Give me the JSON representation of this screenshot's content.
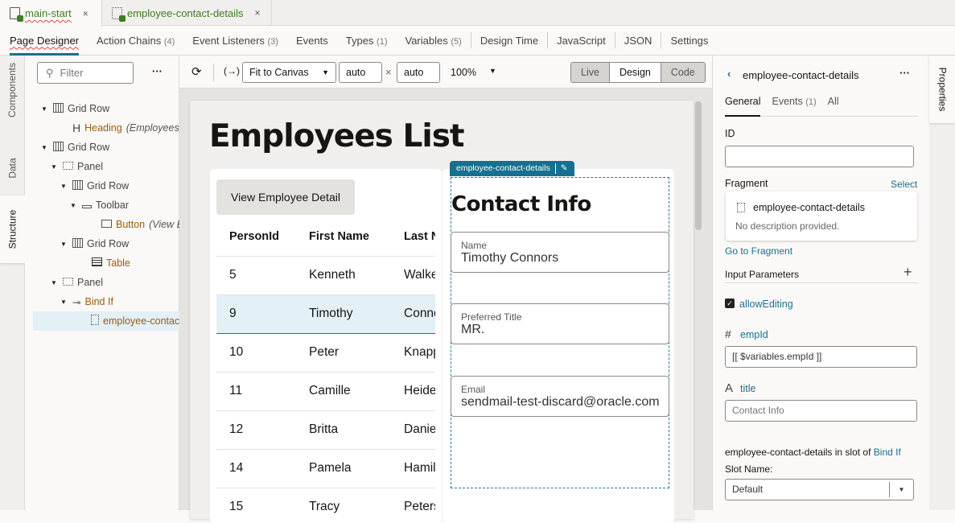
{
  "file_tabs": [
    {
      "label": "main-start",
      "close": "×"
    },
    {
      "label": "employee-contact-details",
      "close": "×"
    }
  ],
  "nav": [
    {
      "label": "Page Designer",
      "count": ""
    },
    {
      "label": "Action Chains",
      "count": "(4)"
    },
    {
      "label": "Event Listeners",
      "count": "(3)"
    },
    {
      "label": "Events",
      "count": ""
    },
    {
      "label": "Types",
      "count": "(1)"
    },
    {
      "label": "Variables",
      "count": "(5)"
    },
    {
      "label": "Design Time",
      "count": ""
    },
    {
      "label": "JavaScript",
      "count": ""
    },
    {
      "label": "JSON",
      "count": ""
    },
    {
      "label": "Settings",
      "count": ""
    }
  ],
  "left_tabs": [
    "Components",
    "Data",
    "Structure"
  ],
  "structure": {
    "filter_placeholder": "Filter",
    "more": "···",
    "tree": [
      {
        "label": "Grid Row",
        "note": "",
        "icon": "grid-row-icon",
        "orange": false
      },
      {
        "label": "Heading",
        "note": "(Employees List)",
        "icon": "heading-icon",
        "orange": true
      },
      {
        "label": "Grid Row",
        "note": "",
        "icon": "grid-row-icon",
        "orange": false
      },
      {
        "label": "Panel",
        "note": "",
        "icon": "panel-icon",
        "orange": false
      },
      {
        "label": "Grid Row",
        "note": "",
        "icon": "grid-row-icon",
        "orange": false
      },
      {
        "label": "Toolbar",
        "note": "",
        "icon": "toolbar-icon",
        "orange": false
      },
      {
        "label": "Button",
        "note": "(View Employee Detail)",
        "icon": "button-icon",
        "orange": true
      },
      {
        "label": "Grid Row",
        "note": "",
        "icon": "grid-row-icon",
        "orange": false
      },
      {
        "label": "Table",
        "note": "",
        "icon": "table-icon",
        "orange": true
      },
      {
        "label": "Panel",
        "note": "",
        "icon": "panel-icon",
        "orange": false
      },
      {
        "label": "Bind If",
        "note": "",
        "icon": "bind-if-icon",
        "orange": true
      },
      {
        "label": "employee-contact-details",
        "note": "",
        "icon": "fragment-icon",
        "orange": true
      }
    ]
  },
  "toolbar": {
    "fit": "Fit to Canvas",
    "width": "auto",
    "times": "×",
    "height": "auto",
    "zoom": "100%",
    "modes": [
      "Live",
      "Design",
      "Code"
    ],
    "active_mode": "Design"
  },
  "page": {
    "title": "Employees List",
    "button": "View Employee Detail",
    "columns": [
      "PersonId",
      "First Name",
      "Last Name"
    ],
    "rows": [
      [
        "5",
        "Kenneth",
        "Walker"
      ],
      [
        "9",
        "Timothy",
        "Connors"
      ],
      [
        "10",
        "Peter",
        "Knapp"
      ],
      [
        "11",
        "Camille",
        "Heidel"
      ],
      [
        "12",
        "Britta",
        "Daniels"
      ],
      [
        "14",
        "Pamela",
        "Hamilton"
      ],
      [
        "15",
        "Tracy",
        "Peters"
      ]
    ],
    "selected_row": 1
  },
  "fragment": {
    "tag": "employee-contact-details",
    "title": "Contact Info",
    "fields": [
      {
        "label": "Name",
        "value": "Timothy Connors"
      },
      {
        "label": "Preferred Title",
        "value": "MR."
      },
      {
        "label": "Email",
        "value": "sendmail-test-discard@oracle.com"
      }
    ]
  },
  "props": {
    "title": "employee-contact-details",
    "more": "···",
    "tabs": [
      "General",
      "Events",
      "All"
    ],
    "events_count": "(1)",
    "id_label": "ID",
    "id_value": "",
    "fragment_label": "Fragment",
    "select": "Select",
    "frag_name": "employee-contact-details",
    "frag_desc": "No description provided.",
    "goto": "Go to Fragment",
    "input_params": "Input Parameters",
    "allow_editing": "allowEditing",
    "allow_editing_checked": true,
    "empid_label": "empId",
    "empid_value": "[[ $variables.empId ]]",
    "title_label": "title",
    "title_placeholder": "Contact Info",
    "slot_text": "employee-contact-details in slot of",
    "slot_link": "Bind If",
    "slot_name_label": "Slot Name:",
    "slot_value": "Default",
    "side_tab": "Properties"
  },
  "colors": {
    "accent": "#1b6f8e",
    "fragment_green": "#3f7d1f",
    "node_orange": "#9a5b10"
  }
}
